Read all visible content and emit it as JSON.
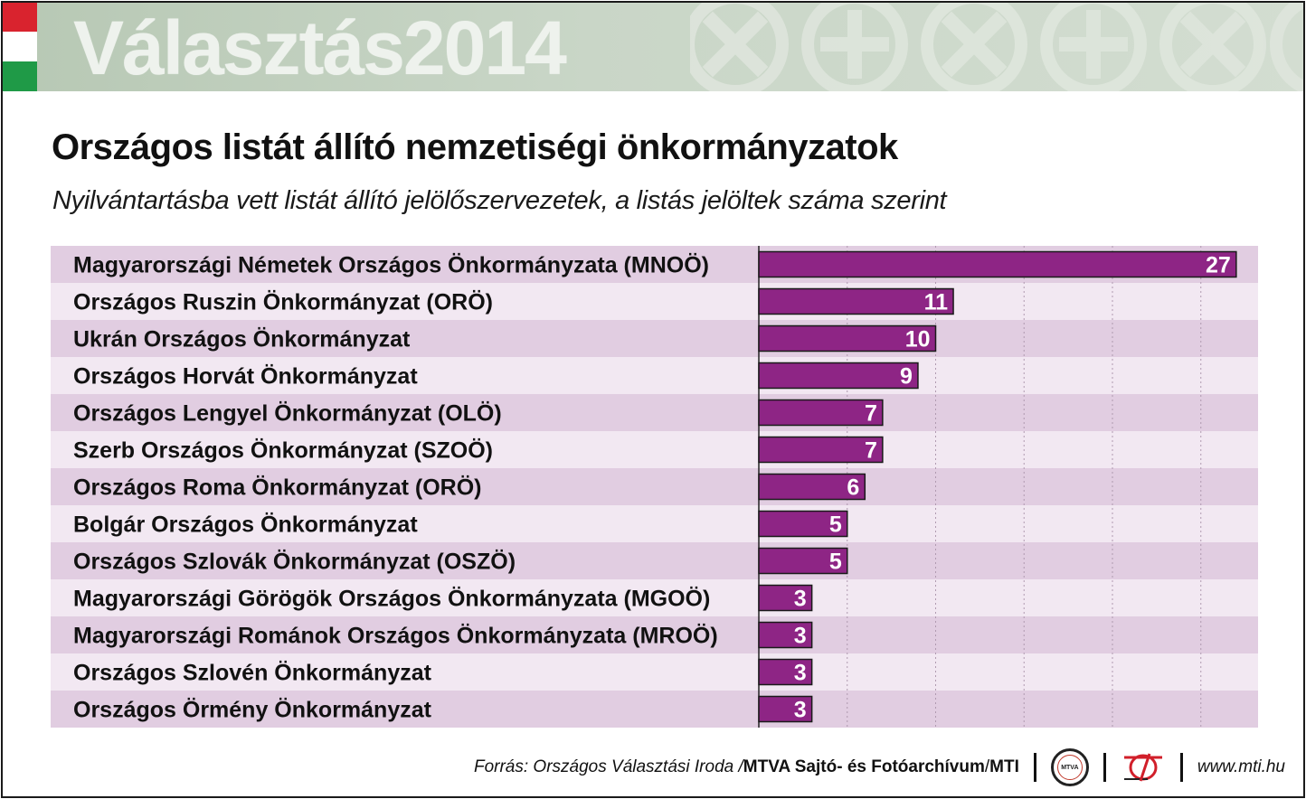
{
  "banner": {
    "title": "Választás2014"
  },
  "header": {
    "title": "Országos listát állító nemzetiségi önkormányzatok",
    "subtitle": "Nyilvántartásba vett listát állító jelölőszervezetek, a listás jelöltek száma szerint"
  },
  "colors": {
    "bar": "#8e2585",
    "row_dark": "#e1cde1",
    "row_light": "#f2e8f2",
    "grid": "#b09ab0"
  },
  "chart_data": {
    "type": "bar",
    "orientation": "horizontal",
    "categories": [
      "Magyarországi Németek Országos Önkormányzata (MNOÖ)",
      "Országos Ruszin Önkormányzat (ORÖ)",
      "Ukrán Országos Önkormányzat",
      "Országos Horvát Önkormányzat",
      "Országos Lengyel Önkormányzat (OLÖ)",
      "Szerb Országos Önkormányzat (SZOÖ)",
      "Országos Roma Önkormányzat (ORÖ)",
      "Bolgár Országos Önkormányzat",
      "Országos Szlovák Önkormányzat (OSZÖ)",
      "Magyarországi Görögök Országos Önkormányzata (MGOÖ)",
      "Magyarországi Románok Országos Önkormányzata (MROÖ)",
      "Országos Szlovén Önkormányzat",
      "Országos Örmény Önkormányzat"
    ],
    "values": [
      27,
      11,
      10,
      9,
      7,
      7,
      6,
      5,
      5,
      3,
      3,
      3,
      3
    ],
    "xlim": [
      0,
      28
    ],
    "grid": true,
    "grid_step": 5,
    "legend": "none"
  },
  "footer": {
    "source": "Forrás: Országos Választási Iroda / ",
    "org": "MTVA Sajtó- és Fotóarchívum",
    "org_sep": " / ",
    "mti": "MTI",
    "logo_text": "MTVA",
    "url": "www.mti.hu"
  }
}
